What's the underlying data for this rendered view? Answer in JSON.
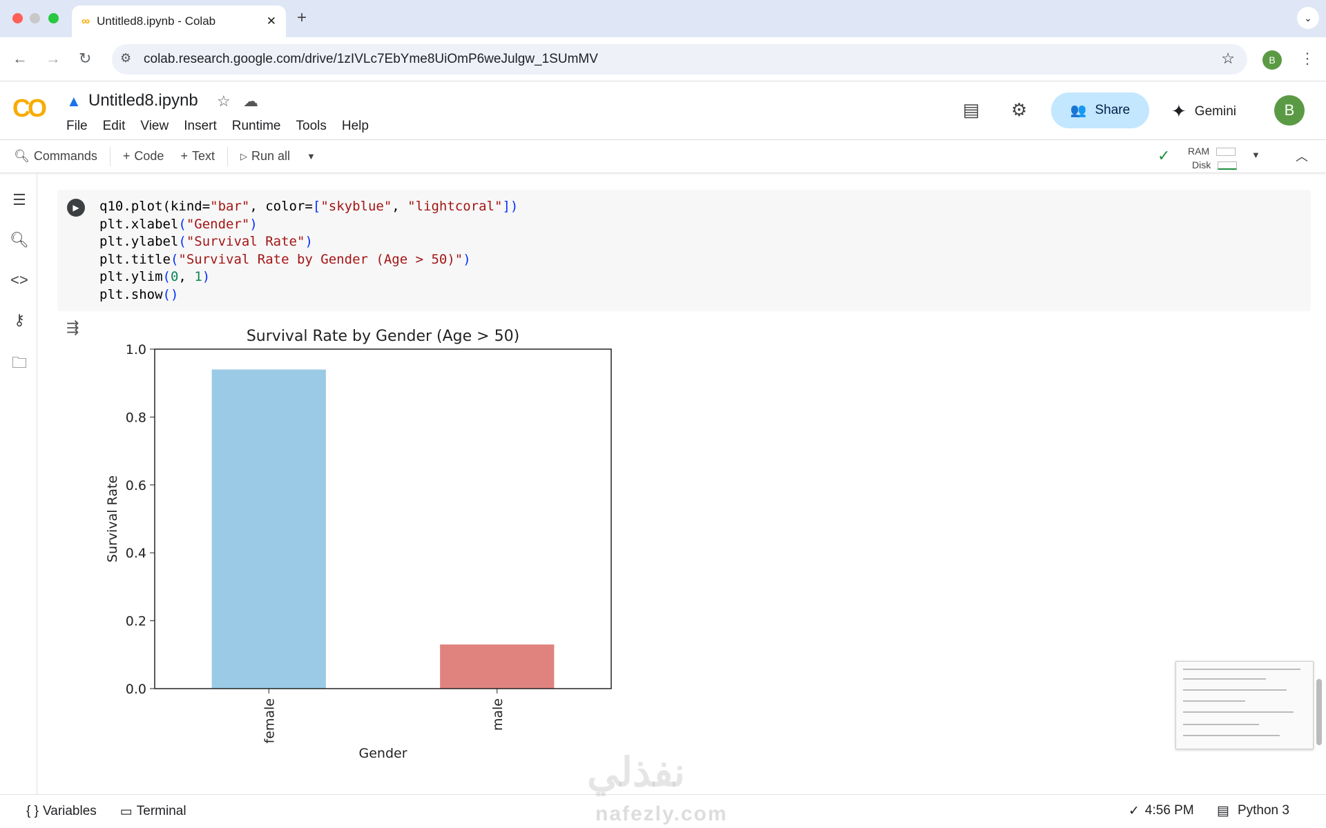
{
  "browser": {
    "tab_title": "Untitled8.ipynb - Colab",
    "url": "colab.research.google.com/drive/1zIVLc7EbYme8UiOmP6weJulgw_1SUmMV",
    "profile_initial": "B"
  },
  "colab": {
    "logo": "CO",
    "notebook_title": "Untitled8.ipynb",
    "menu": [
      "File",
      "Edit",
      "View",
      "Insert",
      "Runtime",
      "Tools",
      "Help"
    ],
    "share_label": "Share",
    "gemini_label": "Gemini",
    "avatar_initial": "B"
  },
  "toolbar": {
    "commands": "Commands",
    "code": "Code",
    "text": "Text",
    "run_all": "Run all",
    "ram": "RAM",
    "disk": "Disk"
  },
  "cell": {
    "code_lines": [
      "q10.plot(kind=\"bar\", color=[\"skyblue\", \"lightcoral\"])",
      "plt.xlabel(\"Gender\")",
      "plt.ylabel(\"Survival Rate\")",
      "plt.title(\"Survival Rate by Gender (Age > 50)\")",
      "plt.ylim(0, 1)",
      "plt.show()"
    ]
  },
  "chart_data": {
    "type": "bar",
    "title": "Survival Rate by Gender (Age > 50)",
    "xlabel": "Gender",
    "ylabel": "Survival Rate",
    "categories": [
      "female",
      "male"
    ],
    "values": [
      0.94,
      0.13
    ],
    "colors": [
      "#9acae6",
      "#e0837e"
    ],
    "ylim": [
      0,
      1
    ],
    "yticks": [
      "0.0",
      "0.2",
      "0.4",
      "0.6",
      "0.8",
      "1.0"
    ],
    "grid": false
  },
  "statusbar": {
    "variables": "Variables",
    "terminal": "Terminal",
    "time": "4:56 PM",
    "runtime": "Python 3"
  },
  "watermark": {
    "arabic": "نفذلي",
    "latin": "nafezly.com"
  }
}
